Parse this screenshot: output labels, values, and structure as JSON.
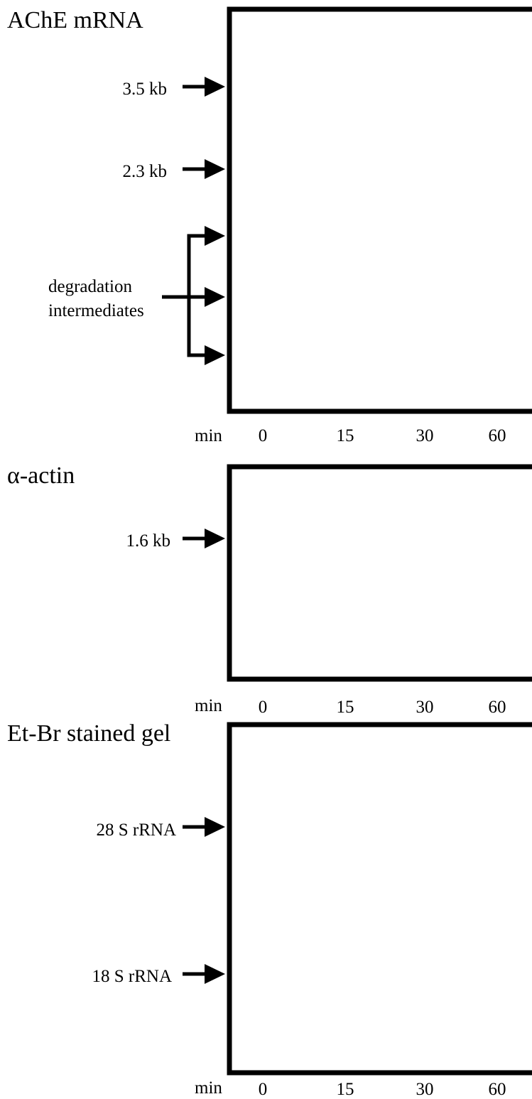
{
  "figure": {
    "panels": [
      {
        "id": "ache",
        "title": "AChE mRNA",
        "markers": [
          {
            "label": "3.5 kb"
          },
          {
            "label": "2.3 kb"
          }
        ],
        "group": {
          "label_line1": "degradation",
          "label_line2": "intermediates",
          "arrow_count": 3
        },
        "axis": {
          "unit_label": "min",
          "ticks": [
            "0",
            "15",
            "30",
            "60"
          ]
        }
      },
      {
        "id": "actin",
        "title": "α-actin",
        "markers": [
          {
            "label": "1.6 kb"
          }
        ],
        "axis": {
          "unit_label": "min",
          "ticks": [
            "0",
            "15",
            "30",
            "60"
          ]
        }
      },
      {
        "id": "etbr",
        "title": "Et-Br stained gel",
        "markers": [
          {
            "label": "28 S rRNA"
          },
          {
            "label": "18 S rRNA"
          }
        ],
        "axis": {
          "unit_label": "min",
          "ticks": [
            "0",
            "15",
            "30",
            "60"
          ]
        }
      }
    ],
    "colors": {
      "ink": "#000000",
      "background": "#ffffff"
    }
  }
}
